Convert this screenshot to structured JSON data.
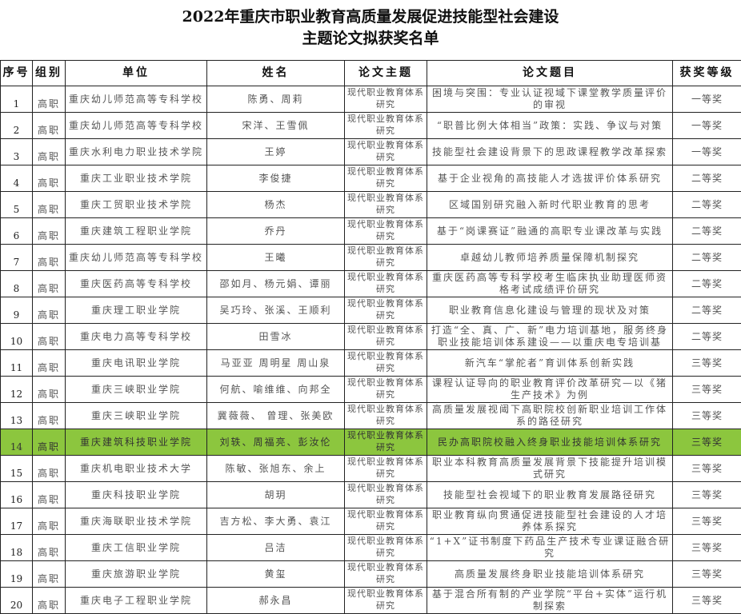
{
  "title": {
    "line1": "2022年重庆市职业教育高质量发展促进技能型社会建设",
    "line2": "主题论文拟获奖名单"
  },
  "highlight_color": "#8cc63e",
  "headers": [
    "序号",
    "组别",
    "单位",
    "姓名",
    "论文主题",
    "论文题目",
    "获奖等级"
  ],
  "rows": [
    {
      "no": "1",
      "group": "高职",
      "unit": "重庆幼儿师范高等专科学校",
      "names": "陈勇、周莉",
      "topic": "现代职业教育体系研究",
      "paper": "困境与突围：专业认证视域下课堂教学质量评价的审视",
      "award": "一等奖"
    },
    {
      "no": "2",
      "group": "高职",
      "unit": "重庆幼儿师范高等专科学校",
      "names": "宋洋、王雪佩",
      "topic": "现代职业教育体系研究",
      "paper": "“职普比例大体相当”政策：实践、争议与对策",
      "award": "一等奖"
    },
    {
      "no": "3",
      "group": "高职",
      "unit": "重庆水利电力职业技术学院",
      "names": "王婷",
      "topic": "现代职业教育体系研究",
      "paper": "技能型社会建设背景下的思政课程教学改革探索",
      "award": "一等奖"
    },
    {
      "no": "4",
      "group": "高职",
      "unit": "重庆工业职业技术学院",
      "names": "李俊捷",
      "topic": "现代职业教育体系研究",
      "paper": "基于企业视角的高技能人才选拔评价体系研究",
      "award": "二等奖"
    },
    {
      "no": "5",
      "group": "高职",
      "unit": "重庆工贸职业技术学院",
      "names": "杨杰",
      "topic": "现代职业教育体系研究",
      "paper": "区域国别研究融入新时代职业教育的思考",
      "award": "二等奖"
    },
    {
      "no": "6",
      "group": "高职",
      "unit": "重庆建筑工程职业学院",
      "names": "乔丹",
      "topic": "现代职业教育体系研究",
      "paper": "基于“岗课赛证”融通的高职专业课改革与实践",
      "award": "二等奖"
    },
    {
      "no": "7",
      "group": "高职",
      "unit": "重庆幼儿师范高等专科学校",
      "names": "王曦",
      "topic": "现代职业教育体系研究",
      "paper": "卓越幼儿教师培养质量保障机制探究",
      "award": "二等奖"
    },
    {
      "no": "8",
      "group": "高职",
      "unit": "重庆医药高等专科学校",
      "names": "邵如月、杨元娟、谭丽",
      "topic": "现代职业教育体系研究",
      "paper": "重庆医药高等专科学校考生临床执业助理医师资格考试成绩评价研究",
      "award": "二等奖"
    },
    {
      "no": "9",
      "group": "高职",
      "unit": "重庆理工职业学院",
      "names": "吴巧玲、张溪、王顺利",
      "topic": "现代职业教育体系研究",
      "paper": "职业教育信息化建设与管理的现状及对策",
      "award": "二等奖"
    },
    {
      "no": "10",
      "group": "高职",
      "unit": "重庆电力高等专科学校",
      "names": "田雪冰",
      "topic": "现代职业教育体系研究",
      "paper": "打造“全、真、广、新”电力培训基地，服务终身职业技能培训体系建设——以重庆电专培训基",
      "award": "二等奖"
    },
    {
      "no": "11",
      "group": "高职",
      "unit": "重庆电讯职业学院",
      "names": "马亚亚 周明星 周山泉",
      "topic": "现代职业教育体系研究",
      "paper": "新汽车“掌舵者”育训体系创新实践",
      "award": "三等奖"
    },
    {
      "no": "12",
      "group": "高职",
      "unit": "重庆三峡职业学院",
      "names": "何航、喻维维、向邦全",
      "topic": "现代职业教育体系研究",
      "paper": "课程认证导向的职业教育评价改革研究—以《猪生产技术》为例",
      "award": "三等奖"
    },
    {
      "no": "13",
      "group": "高职",
      "unit": "重庆三峡职业学院",
      "names": "冀薇薇、 曾理、张美欧",
      "topic": "现代职业教育体系研究",
      "paper": "高质量发展视阈下高职院校创新职业培训工作体系的路径研究",
      "award": "三等奖"
    },
    {
      "no": "14",
      "group": "高职",
      "unit": "重庆建筑科技职业学院",
      "names": "刘轶、周福亮、彭汝伦",
      "topic": "现代职业教育体系研究",
      "paper": "民办高职院校融入终身职业技能培训体系研究",
      "award": "三等奖",
      "highlighted": true
    },
    {
      "no": "15",
      "group": "高职",
      "unit": "重庆机电职业技术大学",
      "names": "陈敏、张旭东、余上",
      "topic": "现代职业教育体系研究",
      "paper": "职业本科教育高质量发展背景下技能提升培训模式研究",
      "award": "三等奖"
    },
    {
      "no": "16",
      "group": "高职",
      "unit": "重庆科技职业学院",
      "names": "胡玥",
      "topic": "现代职业教育体系研究",
      "paper": "技能型社会视域下的职业教育发展路径研究",
      "award": "三等奖"
    },
    {
      "no": "17",
      "group": "高职",
      "unit": "重庆海联职业技术学院",
      "names": "吉方松、李大勇、袁江",
      "topic": "现代职业教育体系研究",
      "paper": "职业教育纵向贯通促进技能型社会建设的人才培养体系探究",
      "award": "三等奖"
    },
    {
      "no": "18",
      "group": "高职",
      "unit": "重庆工信职业学院",
      "names": "吕洁",
      "topic": "现代职业教育体系研究",
      "paper": "“1+X”证书制度下药品生产技术专业课证融合研究",
      "award": "三等奖"
    },
    {
      "no": "19",
      "group": "高职",
      "unit": "重庆旅游职业学院",
      "names": "黄玺",
      "topic": "现代职业教育体系研究",
      "paper": "高质量发展终身职业技能培训体系研究",
      "award": "三等奖"
    },
    {
      "no": "20",
      "group": "高职",
      "unit": "重庆电子工程职业学院",
      "names": "郝永昌",
      "topic": "现代职业教育体系研究",
      "paper": "基于混合所有制的产业学院“平台+实体”运行机制探索",
      "award": "三等奖"
    }
  ]
}
